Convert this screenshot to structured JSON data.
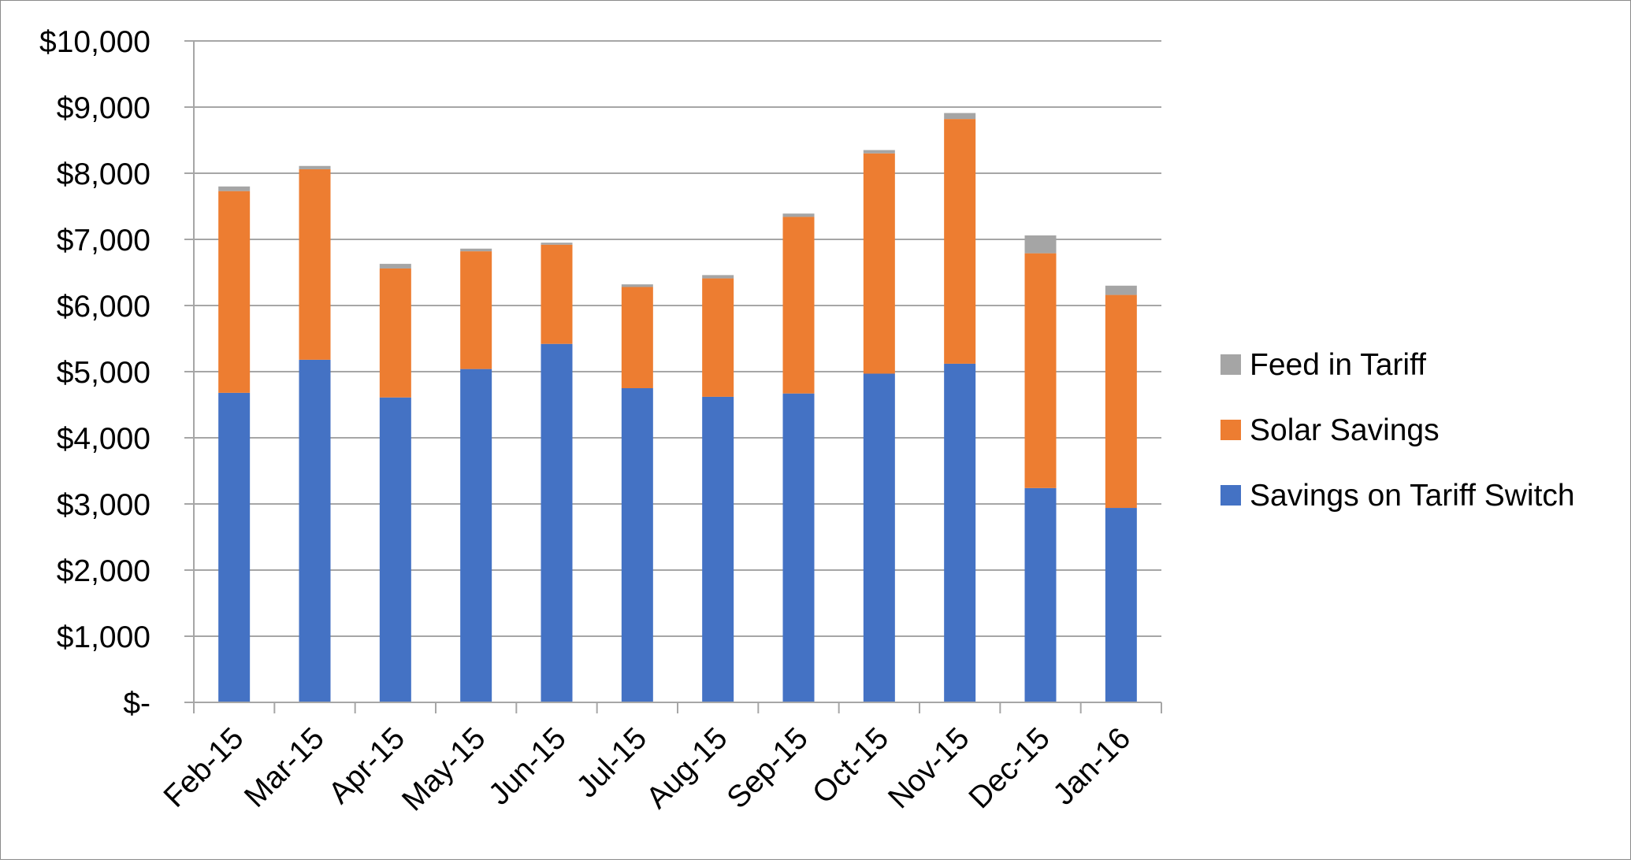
{
  "chart_data": {
    "type": "bar",
    "stacked": true,
    "title": "",
    "xlabel": "",
    "ylabel": "",
    "categories": [
      "Feb-15",
      "Mar-15",
      "Apr-15",
      "May-15",
      "Jun-15",
      "Jul-15",
      "Aug-15",
      "Sep-15",
      "Oct-15",
      "Nov-15",
      "Dec-15",
      "Jan-16"
    ],
    "series": [
      {
        "name": "Savings on Tariff Switch",
        "color": "#4472C4",
        "values": [
          4680,
          5180,
          4610,
          5040,
          5420,
          4750,
          4620,
          4670,
          4970,
          5120,
          3240,
          2940
        ]
      },
      {
        "name": "Solar Savings",
        "color": "#ED7D31",
        "values": [
          3050,
          2880,
          1950,
          1780,
          1500,
          1530,
          1790,
          2670,
          3330,
          3700,
          3550,
          3220
        ]
      },
      {
        "name": "Feed in Tariff",
        "color": "#A5A5A5",
        "values": [
          70,
          50,
          70,
          40,
          30,
          40,
          50,
          50,
          50,
          90,
          270,
          140
        ]
      }
    ],
    "ylim": [
      0,
      10000
    ],
    "yticks": [
      0,
      1000,
      2000,
      3000,
      4000,
      5000,
      6000,
      7000,
      8000,
      9000,
      10000
    ],
    "ytick_labels": [
      "$-",
      "$1,000",
      "$2,000",
      "$3,000",
      "$4,000",
      "$5,000",
      "$6,000",
      "$7,000",
      "$8,000",
      "$9,000",
      "$10,000"
    ],
    "grid": true,
    "legend_position": "right",
    "legend_order": [
      "Feed in Tariff",
      "Solar Savings",
      "Savings on Tariff Switch"
    ],
    "colors": {
      "gridline": "#A6A6A6",
      "axis": "#A6A6A6",
      "frame": "#8A8A8A"
    }
  }
}
